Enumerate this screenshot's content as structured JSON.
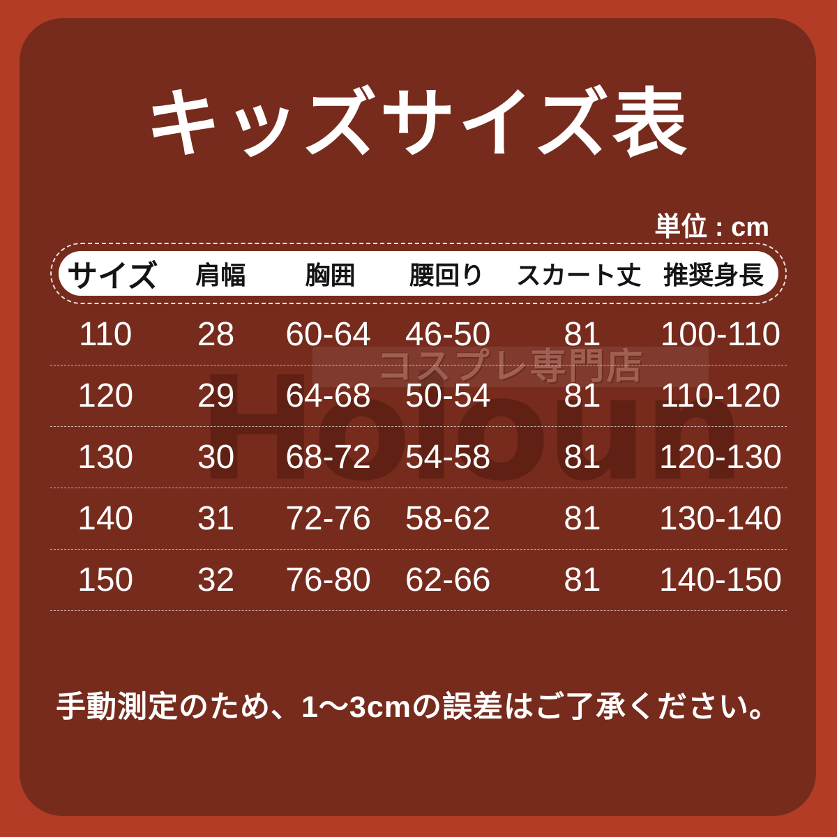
{
  "title": "キッズサイズ表",
  "unit_label": "単位 : cm",
  "table": {
    "headers": [
      "サイズ",
      "肩幅",
      "胸囲",
      "腰回り",
      "スカート丈",
      "推奨身長"
    ],
    "rows": [
      [
        "110",
        "28",
        "60-64",
        "46-50",
        "81",
        "100-110"
      ],
      [
        "120",
        "29",
        "64-68",
        "50-54",
        "81",
        "110-120"
      ],
      [
        "130",
        "30",
        "68-72",
        "54-58",
        "81",
        "120-130"
      ],
      [
        "140",
        "31",
        "72-76",
        "58-62",
        "81",
        "130-140"
      ],
      [
        "150",
        "32",
        "76-80",
        "62-66",
        "81",
        "140-150"
      ]
    ]
  },
  "note": "手動測定のため、1〜3cmの誤差はご了承ください。",
  "watermark": {
    "shop_text": "コスプレ専門店",
    "brand": "Holoun"
  },
  "colors": {
    "frame": "#b23c26",
    "panel": "#772b1d",
    "pill": "#ffffff",
    "header-text": "#141414",
    "body-text": "#ffffff"
  }
}
